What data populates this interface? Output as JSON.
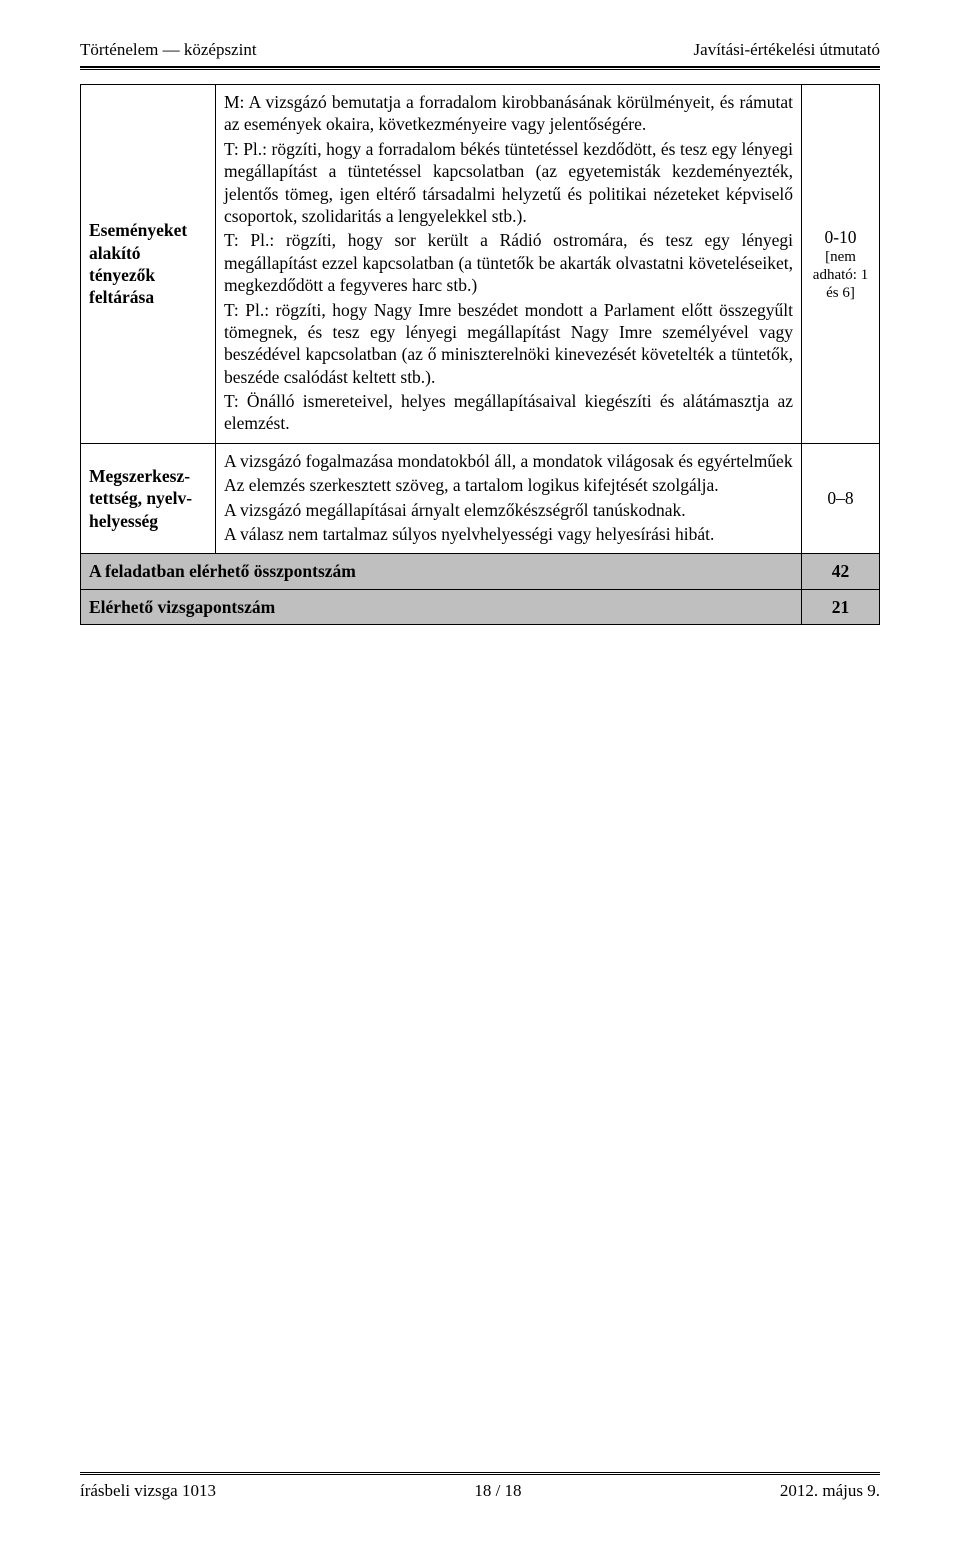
{
  "header": {
    "left": "Történelem — középszint",
    "right": "Javítási-értékelési útmutató"
  },
  "rows": {
    "r1": {
      "label": "Eseményeket alakító tényezők feltárása",
      "p1": "M: A vizsgázó bemutatja a forradalom kirobbanásának körülményeit, és rámutat az események okaira, következményeire vagy jelentőségére.",
      "p2a": "T: Pl.: rögzíti, hogy a forradalom békés tüntetéssel kezdődött, és tesz egy lényegi megállapítást a tüntetéssel kapcsolatban (az egyetemisták kezdeményezték, jelentős tömeg, igen eltérő társadalmi helyzetű és politikai nézeteket képviselő csoportok, szolidaritás a lengyelekkel stb.).",
      "p2b": "T: Pl.: rögzíti, hogy sor került a Rádió ostromára, és tesz egy lényegi megállapítást ezzel kapcsolatban (a tüntetők be akarták olvastatni követeléseiket, megkezdődött a fegyveres harc stb.)",
      "p2c": "T: Pl.: rögzíti, hogy Nagy Imre beszédet mondott a Parlament előtt összegyűlt tömegnek, és tesz egy lényegi megállapítást Nagy Imre személyével vagy beszédével kapcsolatban (az ő miniszterelnöki kinevezését követelték a tüntetők, beszéde csalódást keltett stb.).",
      "p3": "T: Önálló ismereteivel, helyes megállapításaival kiegészíti és alátámasztja az elemzést.",
      "score_main": "0-10",
      "score_sub": "[nem adható: 1 és 6]"
    },
    "r2": {
      "label": "Megszerkesz-tettség, nyelv-helyesség",
      "p1": "A vizsgázó fogalmazása mondatokból áll, a mondatok világosak és egyértelműek",
      "p2": "Az elemzés szerkesztett szöveg, a tartalom logikus kifejtését szolgálja.",
      "p3": "A vizsgázó megállapításai árnyalt elemzőkészségről tanúskodnak.",
      "p4": "A válasz nem tartalmaz súlyos nyelvhelyességi vagy helyesírási hibát.",
      "score": "0–8"
    },
    "total1": {
      "label": "A feladatban elérhető összpontszám",
      "value": "42"
    },
    "total2": {
      "label": "Elérhető vizsgapontszám",
      "value": "21"
    }
  },
  "footer": {
    "left": "írásbeli vizsga 1013",
    "center": "18 / 18",
    "right": "2012. május 9."
  }
}
